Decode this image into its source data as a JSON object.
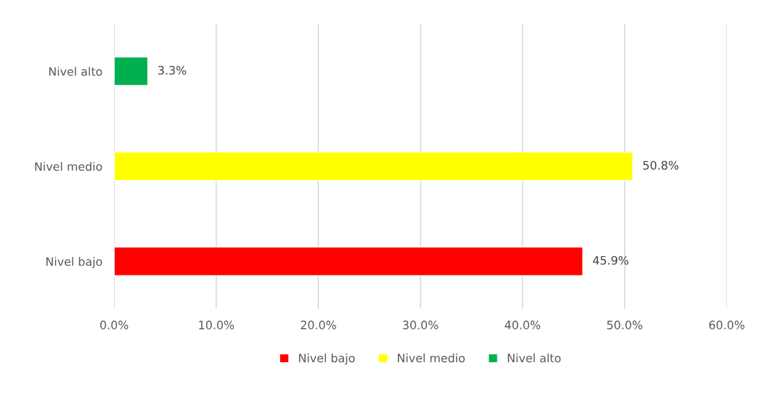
{
  "chart_data": {
    "type": "bar",
    "orientation": "horizontal",
    "categories": [
      "Nivel alto",
      "Nivel medio",
      "Nivel bajo"
    ],
    "series": [
      {
        "name": "Nivel bajo",
        "color": "#ff0000",
        "values": [
          null,
          null,
          45.9
        ],
        "value_labels": [
          null,
          null,
          "45.9%"
        ]
      },
      {
        "name": "Nivel medio",
        "color": "#ffff00",
        "values": [
          null,
          50.8,
          null
        ],
        "value_labels": [
          null,
          "50.8%",
          null
        ]
      },
      {
        "name": "Nivel alto",
        "color": "#00b050",
        "values": [
          3.3,
          null,
          null
        ],
        "value_labels": [
          "3.3%",
          null,
          null
        ]
      }
    ],
    "xlim": [
      0,
      60
    ],
    "xticks": [
      {
        "value": 0,
        "label": "0.0%"
      },
      {
        "value": 10,
        "label": "10.0%"
      },
      {
        "value": 20,
        "label": "20.0%"
      },
      {
        "value": 30,
        "label": "30.0%"
      },
      {
        "value": 40,
        "label": "40.0%"
      },
      {
        "value": 50,
        "label": "50.0%"
      },
      {
        "value": 60,
        "label": "60.0%"
      }
    ],
    "grid": "x",
    "legend": "bottom"
  }
}
